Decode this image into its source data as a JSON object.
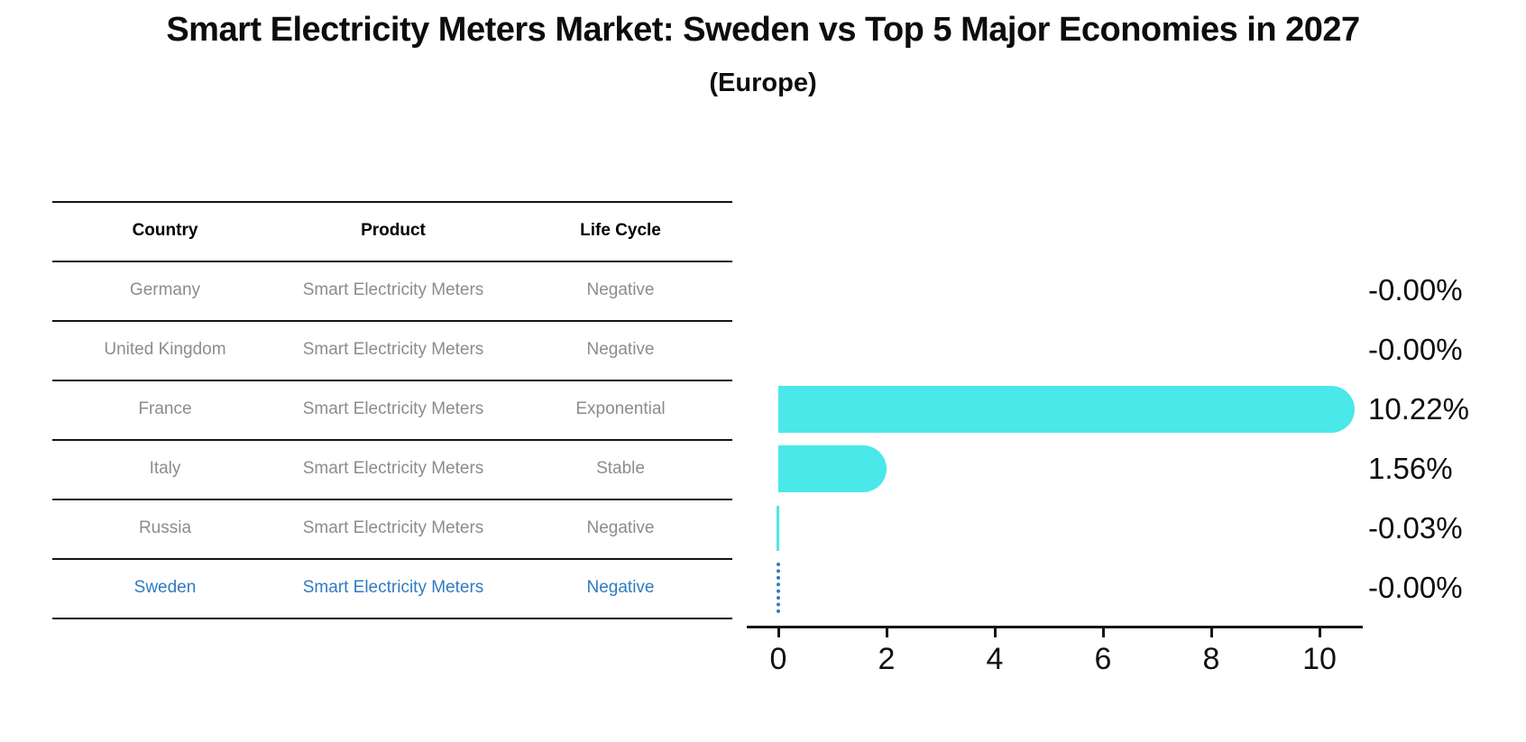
{
  "title": "Smart Electricity Meters Market: Sweden vs Top 5 Major Economies in 2027",
  "subtitle": "(Europe)",
  "table": {
    "headers": [
      "Country",
      "Product",
      "Life Cycle"
    ],
    "rows": [
      {
        "country": "Germany",
        "product": "Smart Electricity Meters",
        "life_cycle": "Negative",
        "value_label": "-0.00%",
        "highlighted": false
      },
      {
        "country": "United Kingdom",
        "product": "Smart Electricity Meters",
        "life_cycle": "Negative",
        "value_label": "-0.00%",
        "highlighted": false
      },
      {
        "country": "France",
        "product": "Smart Electricity Meters",
        "life_cycle": "Exponential",
        "value_label": "10.22%",
        "highlighted": false
      },
      {
        "country": "Italy",
        "product": "Smart Electricity Meters",
        "life_cycle": "Stable",
        "value_label": "1.56%",
        "highlighted": false
      },
      {
        "country": "Russia",
        "product": "Smart Electricity Meters",
        "life_cycle": "Negative",
        "value_label": "-0.03%",
        "highlighted": false
      },
      {
        "country": "Sweden",
        "product": "Smart Electricity Meters",
        "life_cycle": "Negative",
        "value_label": "-0.00%",
        "highlighted": true
      }
    ]
  },
  "chart_data": {
    "type": "bar",
    "orientation": "horizontal",
    "title": "Smart Electricity Meters Market: Sweden vs Top 5 Major Economies in 2027 (Europe)",
    "categories": [
      "Germany",
      "United Kingdom",
      "France",
      "Italy",
      "Russia",
      "Sweden"
    ],
    "values": [
      -0.0,
      -0.0,
      10.22,
      1.56,
      -0.03,
      -0.0
    ],
    "value_labels": [
      "-0.00%",
      "-0.00%",
      "10.22%",
      "1.56%",
      "-0.03%",
      "-0.00%"
    ],
    "x_ticks": [
      0,
      2,
      4,
      6,
      8,
      10
    ],
    "x_tick_labels": [
      "0",
      "2",
      "4",
      "6",
      "8",
      "10"
    ],
    "xlim": [
      -0.6,
      10.8
    ],
    "grid": false,
    "legend": "none",
    "bar_color": "#4AE8E8",
    "highlight": {
      "category": "Sweden",
      "color": "#2F7BC1",
      "style": "dotted"
    }
  },
  "colors": {
    "background": "#ffffff",
    "title_text": "#0d0d0d",
    "table_rule": "#141414",
    "table_body_text": "#8c8c8c",
    "bar": "#4AE8E8",
    "highlight_blue": "#2F7BC1"
  }
}
